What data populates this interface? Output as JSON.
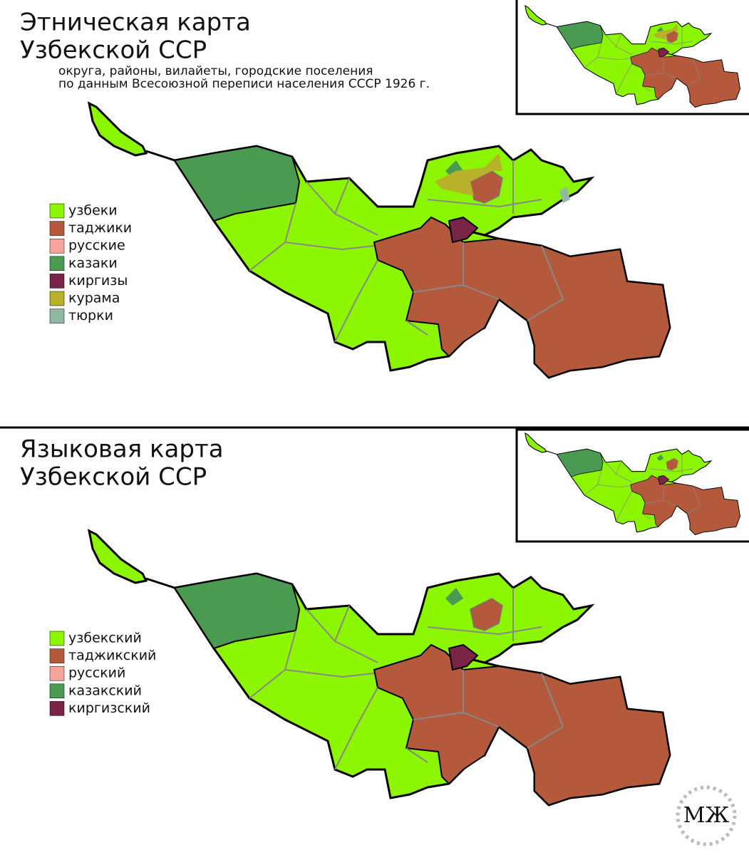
{
  "maps": [
    {
      "title": [
        "Этническая карта",
        "Узбекской ССР"
      ],
      "subtitle": [
        "округа, районы, вилайеты, городские поселения",
        "по данным Всесоюзной переписи населения СССР 1926 г."
      ],
      "legend": [
        {
          "label": "узбеки",
          "color": "#8cf500"
        },
        {
          "label": "таджики",
          "color": "#b5593c"
        },
        {
          "label": "русские",
          "color": "#f4a49a"
        },
        {
          "label": "казаки",
          "color": "#4b9a52"
        },
        {
          "label": "киргизы",
          "color": "#7a2448"
        },
        {
          "label": "курама",
          "color": "#b8b22a"
        },
        {
          "label": "тюрки",
          "color": "#8fb9a2"
        }
      ]
    },
    {
      "title": [
        "Языковая карта",
        "Узбекской ССР"
      ],
      "subtitle": [],
      "legend": [
        {
          "label": "узбекский",
          "color": "#8cf500"
        },
        {
          "label": "таджикский",
          "color": "#b5593c"
        },
        {
          "label": "русский",
          "color": "#f4a49a"
        },
        {
          "label": "казакский",
          "color": "#4b9a52"
        },
        {
          "label": "киргизский",
          "color": "#7a2448"
        }
      ]
    }
  ],
  "watermark": "МЖ"
}
